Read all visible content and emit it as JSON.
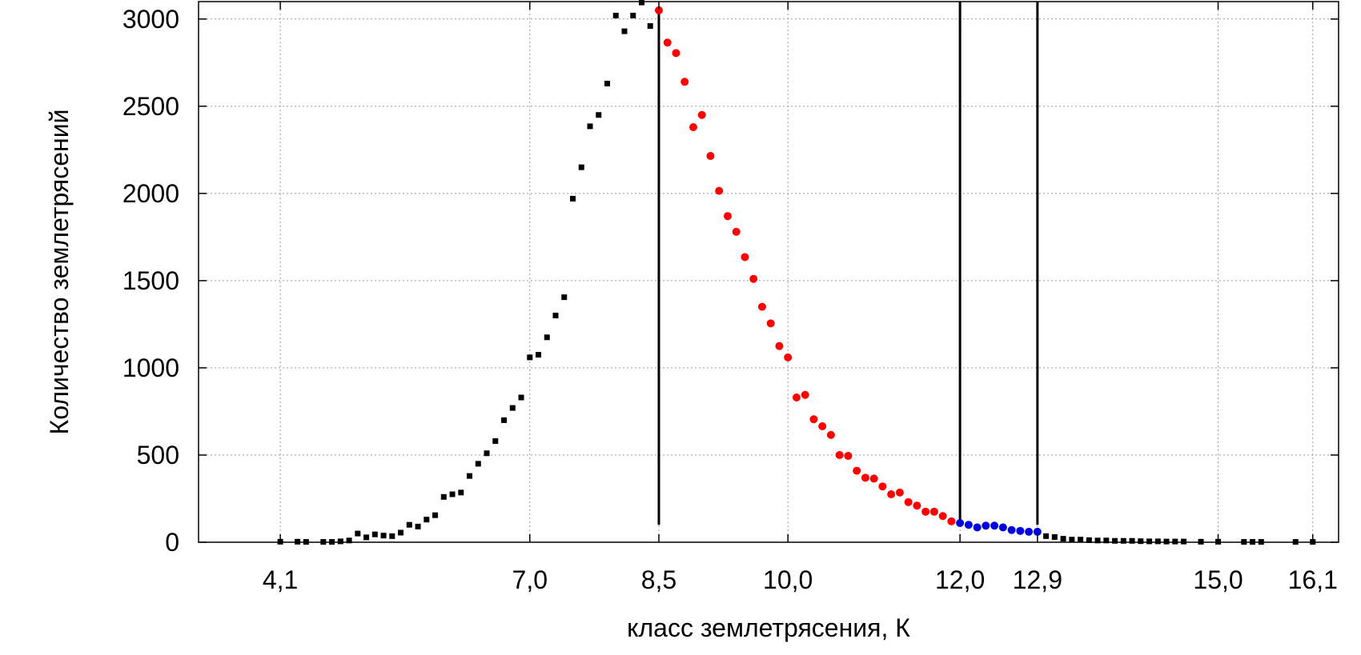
{
  "chart_data": {
    "type": "scatter",
    "title": "",
    "xlabel": "класс землетрясения, К",
    "ylabel": "Количество землетрясений",
    "xlim": [
      3.15,
      16.4
    ],
    "ylim": [
      0,
      3100
    ],
    "grid": true,
    "x_ticks": [
      4.1,
      7.0,
      8.5,
      10.0,
      12.0,
      12.9,
      15.0,
      16.1
    ],
    "x_tick_labels": [
      "4,1",
      "7,0",
      "8,5",
      "10,0",
      "12,0",
      "12,9",
      "15,0",
      "16,1"
    ],
    "y_ticks": [
      0,
      500,
      1000,
      1500,
      2000,
      2500,
      3000
    ],
    "y_tick_labels": [
      "0",
      "500",
      "1000",
      "1500",
      "2000",
      "2500",
      "3000"
    ],
    "vertical_lines": [
      {
        "x": 8.5,
        "y_from": 100,
        "y_to": 3050
      },
      {
        "x": 12.0,
        "y_from": 100,
        "y_to": 3100
      },
      {
        "x": 12.9,
        "y_from": 100,
        "y_to": 3100
      }
    ],
    "series": [
      {
        "color": "#000000",
        "marker_size": "small",
        "points": [
          [
            4.1,
            3
          ],
          [
            4.3,
            3
          ],
          [
            4.4,
            2
          ],
          [
            4.6,
            2
          ],
          [
            4.7,
            2
          ],
          [
            4.8,
            5
          ],
          [
            4.9,
            10
          ],
          [
            5.0,
            50
          ],
          [
            5.1,
            28
          ],
          [
            5.2,
            45
          ],
          [
            5.3,
            38
          ],
          [
            5.4,
            35
          ],
          [
            5.5,
            55
          ],
          [
            5.6,
            100
          ],
          [
            5.7,
            90
          ],
          [
            5.8,
            130
          ],
          [
            5.9,
            155
          ],
          [
            6.0,
            260
          ],
          [
            6.1,
            275
          ],
          [
            6.2,
            285
          ],
          [
            6.3,
            380
          ],
          [
            6.4,
            450
          ],
          [
            6.5,
            510
          ],
          [
            6.6,
            580
          ],
          [
            6.7,
            700
          ],
          [
            6.8,
            770
          ],
          [
            6.9,
            830
          ],
          [
            7.0,
            1060
          ],
          [
            7.1,
            1075
          ],
          [
            7.2,
            1175
          ],
          [
            7.3,
            1300
          ],
          [
            7.4,
            1405
          ],
          [
            7.5,
            1970
          ],
          [
            7.6,
            2150
          ],
          [
            7.7,
            2385
          ],
          [
            7.8,
            2450
          ],
          [
            7.9,
            2630
          ],
          [
            8.0,
            3020
          ],
          [
            8.1,
            2930
          ],
          [
            8.2,
            3020
          ],
          [
            8.3,
            3095
          ],
          [
            8.4,
            2960
          ],
          [
            13.0,
            35
          ],
          [
            13.1,
            30
          ],
          [
            13.2,
            20
          ],
          [
            13.3,
            15
          ],
          [
            13.4,
            15
          ],
          [
            13.5,
            12
          ],
          [
            13.6,
            10
          ],
          [
            13.7,
            10
          ],
          [
            13.8,
            8
          ],
          [
            13.9,
            8
          ],
          [
            14.0,
            8
          ],
          [
            14.1,
            6
          ],
          [
            14.2,
            5
          ],
          [
            14.3,
            5
          ],
          [
            14.4,
            4
          ],
          [
            14.5,
            4
          ],
          [
            14.6,
            4
          ],
          [
            14.8,
            3
          ],
          [
            15.0,
            3
          ],
          [
            15.3,
            2
          ],
          [
            15.4,
            2
          ],
          [
            15.5,
            2
          ],
          [
            15.9,
            2
          ],
          [
            16.1,
            2
          ]
        ]
      },
      {
        "color": "#ff0000",
        "marker_size": "large",
        "points": [
          [
            8.5,
            3050
          ],
          [
            8.6,
            2865
          ],
          [
            8.7,
            2805
          ],
          [
            8.8,
            2640
          ],
          [
            8.9,
            2380
          ],
          [
            9.0,
            2450
          ],
          [
            9.1,
            2215
          ],
          [
            9.2,
            2015
          ],
          [
            9.3,
            1870
          ],
          [
            9.4,
            1780
          ],
          [
            9.5,
            1635
          ],
          [
            9.6,
            1510
          ],
          [
            9.7,
            1350
          ],
          [
            9.8,
            1255
          ],
          [
            9.9,
            1125
          ],
          [
            10.0,
            1060
          ],
          [
            10.1,
            830
          ],
          [
            10.2,
            845
          ],
          [
            10.3,
            705
          ],
          [
            10.4,
            665
          ],
          [
            10.5,
            615
          ],
          [
            10.6,
            500
          ],
          [
            10.7,
            495
          ],
          [
            10.8,
            410
          ],
          [
            10.9,
            370
          ],
          [
            11.0,
            365
          ],
          [
            11.1,
            320
          ],
          [
            11.2,
            275
          ],
          [
            11.3,
            285
          ],
          [
            11.4,
            230
          ],
          [
            11.5,
            210
          ],
          [
            11.6,
            175
          ],
          [
            11.7,
            175
          ],
          [
            11.8,
            150
          ],
          [
            11.9,
            120
          ]
        ]
      },
      {
        "color": "#0000dd",
        "marker_size": "large",
        "points": [
          [
            12.0,
            110
          ],
          [
            12.1,
            100
          ],
          [
            12.2,
            85
          ],
          [
            12.3,
            95
          ],
          [
            12.4,
            95
          ],
          [
            12.5,
            85
          ],
          [
            12.6,
            70
          ],
          [
            12.7,
            65
          ],
          [
            12.8,
            60
          ],
          [
            12.9,
            60
          ]
        ]
      }
    ]
  }
}
